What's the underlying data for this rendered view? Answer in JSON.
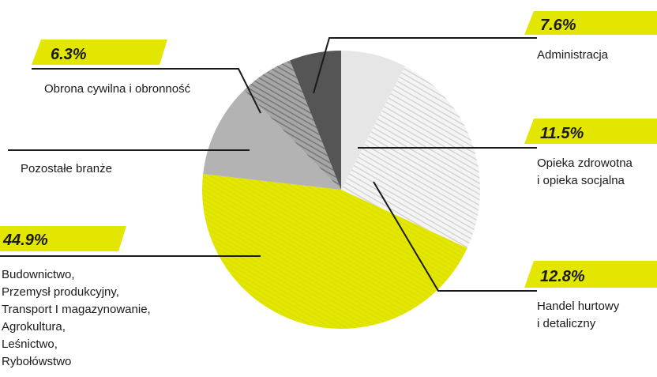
{
  "chart_data": {
    "type": "pie",
    "title": "",
    "slices": [
      {
        "label": "Administracja",
        "value": 7.6,
        "display": "7.6%",
        "color": "#e6e6e6",
        "hatched": false
      },
      {
        "label": "Opieka zdrowotna i opieka socjalna",
        "value": 11.5,
        "display": "11.5%",
        "color": "#f2f2f2",
        "hatched": true
      },
      {
        "label": "Handel hurtowy i detaliczny",
        "value": 12.8,
        "display": "12.8%",
        "color": "#f2f2f2",
        "hatched": true
      },
      {
        "label": "Budownictwo, Przemysł produkcyjny, Transport I magazynowanie, Agrokultura, Leśnictwo, Rybołówstwo",
        "value": 44.9,
        "display": "44.9%",
        "color": "#e2e600",
        "hatched": false
      },
      {
        "label": "Pozostałe branże",
        "value": 10.9,
        "display": "",
        "color": "#b3b3b3",
        "hatched": false
      },
      {
        "label": "Obrona cywilna i obronność",
        "value": 6.3,
        "display": "6.3%",
        "color": "#8c8c8c",
        "hatched": true
      },
      {
        "label": "",
        "value": 6.0,
        "display": "",
        "color": "#555555",
        "hatched": false
      }
    ]
  },
  "labels": {
    "administracja": {
      "pct": "7.6%",
      "lines": [
        "Administracja"
      ]
    },
    "opieka": {
      "pct": "11.5%",
      "lines": [
        "Opieka zdrowotna",
        "i opieka socjalna"
      ]
    },
    "handel": {
      "pct": "12.8%",
      "lines": [
        "Handel hurtowy",
        "i detaliczny"
      ]
    },
    "budownictwo": {
      "pct": "44.9%",
      "lines": [
        "Budownictwo,",
        "Przemysł produkcyjny,",
        "Transport I magazynowanie,",
        "Agrokultura,",
        "Leśnictwo,",
        "Rybołówstwo"
      ]
    },
    "pozostale": {
      "pct": "",
      "lines": [
        "Pozostałe branże"
      ]
    },
    "obrona": {
      "pct": "6.3%",
      "lines": [
        "Obrona cywilna i obronność"
      ]
    }
  },
  "colors": {
    "accent": "#e2e600",
    "leader": "#1a1a1a"
  }
}
